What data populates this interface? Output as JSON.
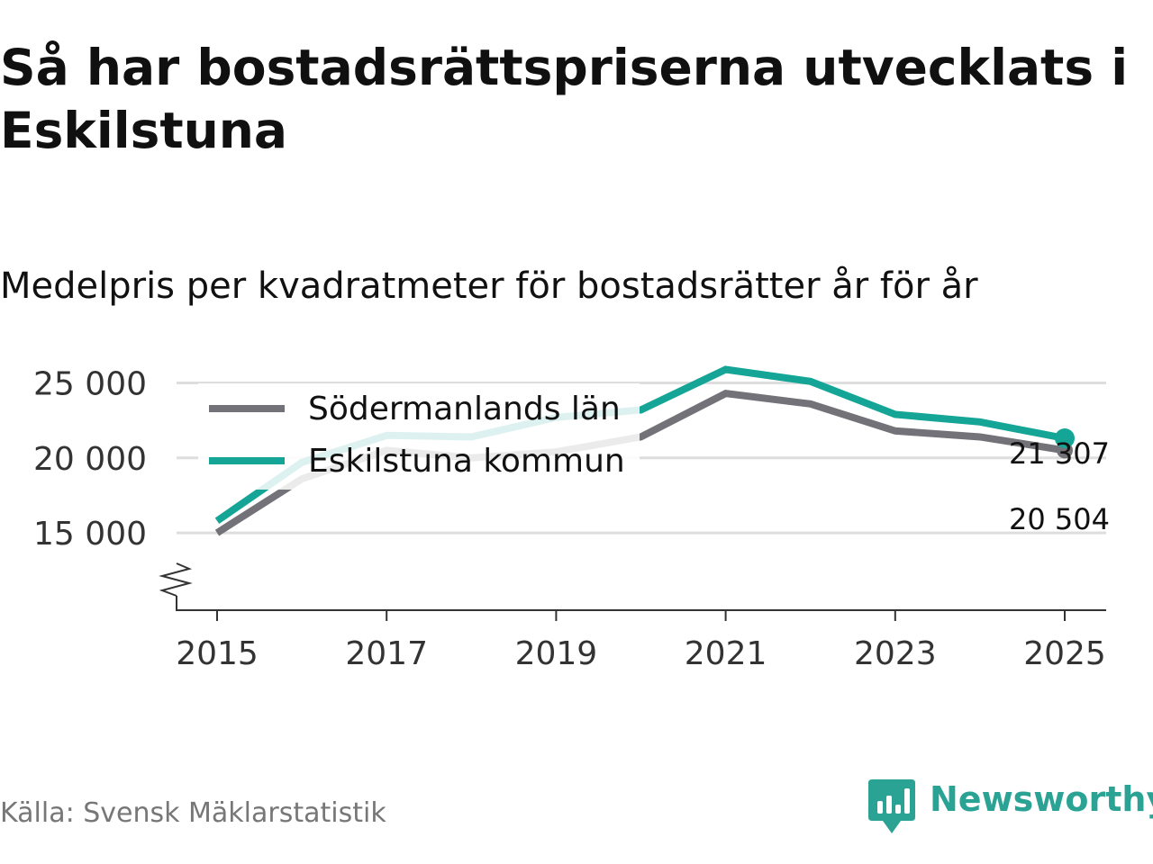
{
  "header": {
    "title": "Så har bostadsrättspriserna utvecklats i Eskilstuna",
    "subtitle": "Medelpris per kvadratmeter för bostadsrätter år för år"
  },
  "footer": {
    "source": "Källa: Svensk Mäklarstatistik",
    "brand": "Newsworthy"
  },
  "colors": {
    "county": "#737278",
    "municipality": "#14a596",
    "grid": "#dedede",
    "axis": "#333333"
  },
  "chart_data": {
    "type": "line",
    "title": "Så har bostadsrättspriserna utvecklats i Eskilstuna",
    "subtitle": "Medelpris per kvadratmeter för bostadsrätter år för år",
    "x": [
      2015,
      2016,
      2017,
      2018,
      2019,
      2020,
      2021,
      2022,
      2023,
      2024,
      2025
    ],
    "x_ticks": [
      2015,
      2017,
      2019,
      2021,
      2023,
      2025
    ],
    "y_ticks": [
      15000,
      20000,
      25000
    ],
    "y_tick_labels": [
      "15 000",
      "20 000",
      "25 000"
    ],
    "ylim": [
      13000,
      25800
    ],
    "axis_break": true,
    "grid": true,
    "legend_position": "top-left",
    "series": [
      {
        "name": "Södermanlands län",
        "key": "county",
        "values": [
          15000,
          18600,
          20500,
          20000,
          20400,
          21400,
          24300,
          23600,
          21800,
          21400,
          20504
        ],
        "end_label": "20 504"
      },
      {
        "name": "Eskilstuna kommun",
        "key": "municipality",
        "values": [
          15800,
          19700,
          21500,
          21400,
          22700,
          23200,
          25900,
          25100,
          22900,
          22400,
          21307
        ],
        "end_label": "21 307"
      }
    ]
  }
}
